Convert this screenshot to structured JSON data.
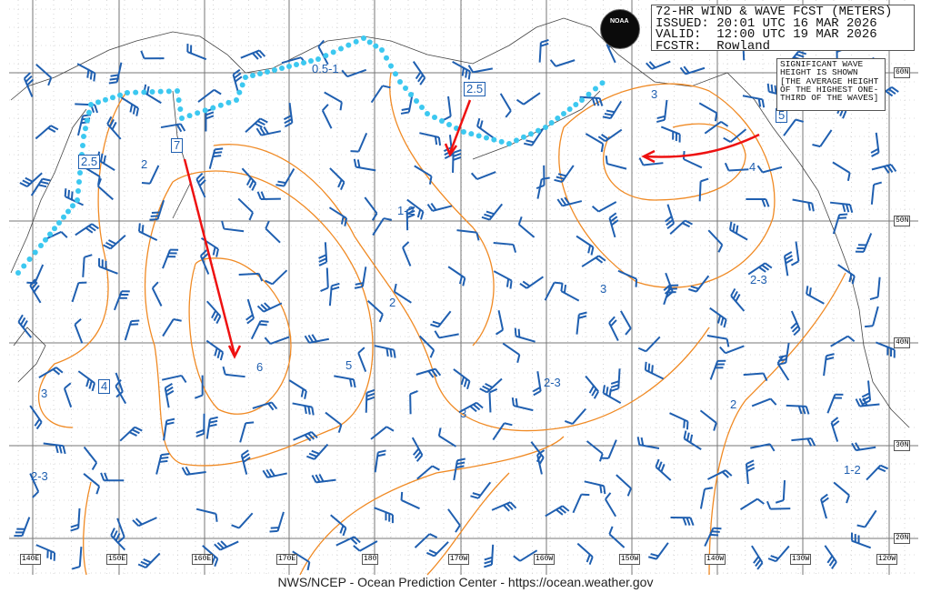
{
  "title": {
    "line1": "72-HR WIND & WAVE FCST (METERS)",
    "line2": "ISSUED: 20:01 UTC 16 MAR 2026",
    "line3": "VALID:  12:00 UTC 19 MAR 2026",
    "line4": "FCSTR:  Rowland"
  },
  "logo": "NOAA",
  "note": "SIGNIFICANT WAVE HEIGHT IS SHOWN [THE AVERAGE HEIGHT OF THE HIGHEST ONE-THIRD OF THE WAVES]",
  "footer": "NWS/NCEP - Ocean Prediction Center - https://ocean.weather.gov",
  "longitude_labels": [
    "140E",
    "150E",
    "160E",
    "170E",
    "180",
    "170W",
    "160W",
    "150W",
    "140W",
    "130W",
    "120W"
  ],
  "latitude_labels": [
    "60N",
    "50N",
    "40N",
    "30N",
    "20N"
  ],
  "wave_labels": [
    {
      "text": "0.5-1",
      "boxed": false
    },
    {
      "text": "2.5",
      "boxed": true
    },
    {
      "text": "2.5",
      "boxed": true
    },
    {
      "text": "2",
      "boxed": false
    },
    {
      "text": "7",
      "boxed": true
    },
    {
      "text": "1-2",
      "boxed": false
    },
    {
      "text": "3",
      "boxed": false
    },
    {
      "text": "5",
      "boxed": true
    },
    {
      "text": "4",
      "boxed": false
    },
    {
      "text": "2-3",
      "boxed": false
    },
    {
      "text": "3",
      "boxed": false
    },
    {
      "text": "2",
      "boxed": false
    },
    {
      "text": "6",
      "boxed": false
    },
    {
      "text": "5",
      "boxed": false
    },
    {
      "text": "3",
      "boxed": false
    },
    {
      "text": "2-3",
      "boxed": false
    },
    {
      "text": "4",
      "boxed": true
    },
    {
      "text": "3",
      "boxed": false
    },
    {
      "text": "2-3",
      "boxed": false
    },
    {
      "text": "2",
      "boxed": false
    },
    {
      "text": "1-2",
      "boxed": false
    }
  ],
  "colors": {
    "contour": "#f08a24",
    "wind_barb": "#1f5fb0",
    "ice_edge": "#3cc8f0",
    "storm_track": "#ee1111",
    "grid": "#777777"
  }
}
